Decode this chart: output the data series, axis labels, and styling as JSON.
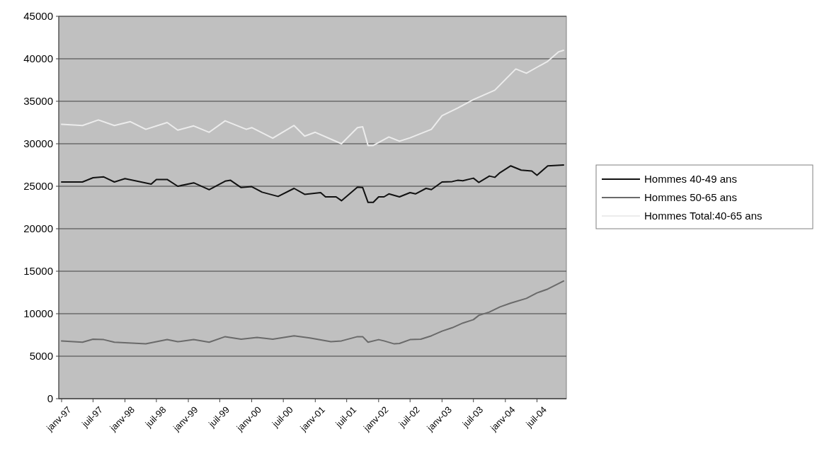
{
  "chart_data": {
    "type": "line",
    "xlim": [
      "1997-01",
      "2004-12"
    ],
    "xticks": [
      {
        "value": "1997-01",
        "label": "janv-97"
      },
      {
        "value": "1997-07",
        "label": "juil-97"
      },
      {
        "value": "1998-01",
        "label": "janv-98"
      },
      {
        "value": "1998-07",
        "label": "juil-98"
      },
      {
        "value": "1999-01",
        "label": "janv-99"
      },
      {
        "value": "1999-07",
        "label": "juil-99"
      },
      {
        "value": "2000-01",
        "label": "janv-00"
      },
      {
        "value": "2000-07",
        "label": "juil-00"
      },
      {
        "value": "2001-01",
        "label": "janv-01"
      },
      {
        "value": "2001-07",
        "label": "juil-01"
      },
      {
        "value": "2002-01",
        "label": "janv-02"
      },
      {
        "value": "2002-07",
        "label": "juil-02"
      },
      {
        "value": "2003-01",
        "label": "janv-03"
      },
      {
        "value": "2003-07",
        "label": "juil-03"
      },
      {
        "value": "2004-01",
        "label": "janv-04"
      },
      {
        "value": "2004-07",
        "label": "juil-04"
      }
    ],
    "ylim": [
      0,
      45000
    ],
    "yticks": [
      0,
      5000,
      10000,
      15000,
      20000,
      25000,
      30000,
      35000,
      40000,
      45000
    ],
    "grid": "y",
    "legend": "right",
    "line_style": "solid",
    "series": [
      {
        "name": "Hommes 40-49 ans",
        "color": "#111111",
        "x": [
          "1997-01",
          "1997-05",
          "1997-07",
          "1997-09",
          "1997-11",
          "1998-01",
          "1998-06",
          "1998-07",
          "1998-09",
          "1998-11",
          "1999-02",
          "1999-05",
          "1999-08",
          "1999-09",
          "1999-11",
          "2000-01",
          "2000-03",
          "2000-06",
          "2000-09",
          "2000-11",
          "2001-02",
          "2001-03",
          "2001-05",
          "2001-06",
          "2001-09",
          "2001-10",
          "2001-11",
          "2001-12",
          "2002-01",
          "2002-02",
          "2002-03",
          "2002-05",
          "2002-07",
          "2002-08",
          "2002-10",
          "2002-11",
          "2003-01",
          "2003-03",
          "2003-04",
          "2003-05",
          "2003-07",
          "2003-08",
          "2003-10",
          "2003-11",
          "2003-12",
          "2004-02",
          "2004-04",
          "2004-06",
          "2004-07",
          "2004-09",
          "2004-12"
        ],
        "values": [
          25500,
          25500,
          26000,
          26100,
          25500,
          25900,
          25250,
          25800,
          25800,
          25000,
          25400,
          24600,
          25600,
          25700,
          24850,
          24950,
          24300,
          23800,
          24750,
          24050,
          24250,
          23750,
          23750,
          23300,
          24900,
          24850,
          23100,
          23100,
          23750,
          23750,
          24100,
          23750,
          24250,
          24100,
          24750,
          24600,
          25500,
          25550,
          25700,
          25650,
          25950,
          25450,
          26200,
          26050,
          26600,
          27400,
          26900,
          26800,
          26300,
          27400,
          27500
        ]
      },
      {
        "name": "Hommes 50-65 ans",
        "color": "#6a6a6a",
        "x": [
          "1997-01",
          "1997-05",
          "1997-07",
          "1997-09",
          "1997-11",
          "1998-05",
          "1998-09",
          "1998-11",
          "1999-02",
          "1999-05",
          "1999-08",
          "1999-11",
          "2000-02",
          "2000-05",
          "2000-09",
          "2000-12",
          "2001-04",
          "2001-06",
          "2001-09",
          "2001-10",
          "2001-11",
          "2002-01",
          "2002-02",
          "2002-04",
          "2002-05",
          "2002-07",
          "2002-09",
          "2002-11",
          "2003-01",
          "2003-03",
          "2003-05",
          "2003-07",
          "2003-08",
          "2003-10",
          "2003-12",
          "2004-02",
          "2004-05",
          "2004-07",
          "2004-09",
          "2004-12"
        ],
        "values": [
          6800,
          6650,
          7000,
          6950,
          6650,
          6450,
          6950,
          6700,
          6950,
          6650,
          7300,
          7000,
          7200,
          7000,
          7400,
          7150,
          6700,
          6800,
          7300,
          7300,
          6650,
          6950,
          6800,
          6450,
          6500,
          6950,
          7000,
          7400,
          7950,
          8350,
          8900,
          9300,
          9800,
          10200,
          10800,
          11250,
          11800,
          12450,
          12900,
          13850
        ]
      },
      {
        "name": "Hommes Total:40-65 ans",
        "color": "#ececec",
        "x": [
          "1997-01",
          "1997-05",
          "1997-08",
          "1997-11",
          "1998-02",
          "1998-05",
          "1998-09",
          "1998-11",
          "1999-02",
          "1999-05",
          "1999-08",
          "1999-12",
          "2000-01",
          "2000-05",
          "2000-09",
          "2000-11",
          "2001-01",
          "2001-06",
          "2001-09",
          "2001-10",
          "2001-11",
          "2001-12",
          "2002-03",
          "2002-05",
          "2002-07",
          "2002-11",
          "2003-01",
          "2003-04",
          "2003-07",
          "2003-11",
          "2004-03",
          "2004-05",
          "2004-07",
          "2004-09",
          "2004-11",
          "2004-12"
        ],
        "values": [
          32300,
          32150,
          32800,
          32150,
          32600,
          31700,
          32500,
          31600,
          32100,
          31350,
          32700,
          31700,
          31900,
          30650,
          32150,
          30900,
          31350,
          30000,
          31900,
          32000,
          29800,
          29800,
          30800,
          30300,
          30700,
          31700,
          33300,
          34200,
          35200,
          36300,
          38800,
          38300,
          39000,
          39700,
          40800,
          41000
        ]
      }
    ]
  }
}
